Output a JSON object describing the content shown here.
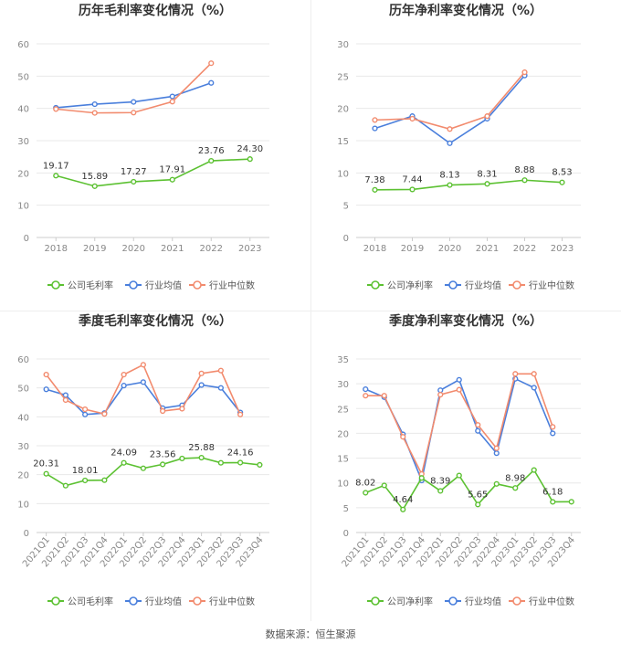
{
  "colors": {
    "company": "#5cc132",
    "industry_avg": "#4a7fdc",
    "industry_median": "#f28b6e",
    "grid": "#e8e8e8",
    "axis_text": "#888888",
    "title": "#333333"
  },
  "source_text": "数据来源：恒生聚源",
  "chart_data": [
    {
      "type": "line",
      "title": "历年毛利率变化情况（%）",
      "categories": [
        "2018",
        "2019",
        "2020",
        "2021",
        "2022",
        "2023"
      ],
      "ylim": [
        0,
        60
      ],
      "yticks": [
        0,
        10,
        20,
        30,
        40,
        50,
        60
      ],
      "grid": true,
      "legend": "bottom",
      "series": [
        {
          "name": "公司毛利率",
          "key": "company",
          "values": [
            19.17,
            15.89,
            17.27,
            17.91,
            23.76,
            24.3
          ],
          "labels": [
            "19.17",
            "15.89",
            "17.27",
            "17.91",
            "23.76",
            "24.30"
          ]
        },
        {
          "name": "行业均值",
          "key": "industry_avg",
          "values": [
            40.2,
            41.3,
            42.0,
            43.7,
            47.9,
            null
          ]
        },
        {
          "name": "行业中位数",
          "key": "industry_median",
          "values": [
            39.8,
            38.6,
            38.7,
            42.1,
            54.0,
            null
          ]
        }
      ]
    },
    {
      "type": "line",
      "title": "历年净利率变化情况（%）",
      "categories": [
        "2018",
        "2019",
        "2020",
        "2021",
        "2022",
        "2023"
      ],
      "ylim": [
        0,
        30
      ],
      "yticks": [
        0,
        5,
        10,
        15,
        20,
        25,
        30
      ],
      "grid": true,
      "legend": "bottom",
      "series": [
        {
          "name": "公司净利率",
          "key": "company",
          "values": [
            7.38,
            7.44,
            8.13,
            8.31,
            8.88,
            8.53
          ],
          "labels": [
            "7.38",
            "7.44",
            "8.13",
            "8.31",
            "8.88",
            "8.53"
          ]
        },
        {
          "name": "行业均值",
          "key": "industry_avg",
          "values": [
            16.9,
            18.8,
            14.6,
            18.4,
            25.1,
            null
          ]
        },
        {
          "name": "行业中位数",
          "key": "industry_median",
          "values": [
            18.2,
            18.4,
            16.8,
            18.8,
            25.6,
            null
          ]
        }
      ]
    },
    {
      "type": "line",
      "title": "季度毛利率变化情况（%）",
      "categories": [
        "2021Q1",
        "2021Q2",
        "2021Q3",
        "2021Q4",
        "2022Q1",
        "2022Q2",
        "2022Q3",
        "2022Q4",
        "2023Q1",
        "2023Q2",
        "2023Q3",
        "2023Q4"
      ],
      "ylim": [
        0,
        60
      ],
      "yticks": [
        0,
        10,
        20,
        30,
        40,
        50,
        60
      ],
      "grid": true,
      "legend": "bottom",
      "series": [
        {
          "name": "公司毛利率",
          "key": "company",
          "values": [
            20.31,
            16.2,
            18.01,
            18.1,
            24.09,
            22.2,
            23.56,
            25.6,
            25.88,
            24.1,
            24.16,
            23.4
          ],
          "labels": [
            "20.31",
            null,
            "18.01",
            null,
            "24.09",
            null,
            "23.56",
            null,
            "25.88",
            null,
            "24.16",
            null
          ]
        },
        {
          "name": "行业均值",
          "key": "industry_avg",
          "values": [
            49.5,
            47.5,
            40.8,
            41.3,
            50.8,
            52.0,
            43.0,
            44.0,
            51.0,
            50.0,
            41.5,
            null
          ]
        },
        {
          "name": "行业中位数",
          "key": "industry_median",
          "values": [
            54.6,
            45.8,
            42.6,
            41.0,
            54.6,
            58.0,
            42.0,
            42.8,
            55.0,
            56.0,
            40.8,
            null
          ]
        }
      ]
    },
    {
      "type": "line",
      "title": "季度净利率变化情况（%）",
      "categories": [
        "2021Q1",
        "2021Q2",
        "2021Q3",
        "2021Q4",
        "2022Q1",
        "2022Q2",
        "2022Q3",
        "2022Q4",
        "2023Q1",
        "2023Q2",
        "2023Q3",
        "2023Q4"
      ],
      "ylim": [
        0,
        35
      ],
      "yticks": [
        0,
        5,
        10,
        15,
        20,
        25,
        30,
        35
      ],
      "grid": true,
      "legend": "bottom",
      "series": [
        {
          "name": "公司净利率",
          "key": "company",
          "values": [
            8.02,
            9.5,
            4.64,
            11.0,
            8.39,
            11.5,
            5.65,
            9.8,
            8.98,
            12.6,
            6.18,
            6.2
          ],
          "labels": [
            "8.02",
            null,
            "4.64",
            null,
            "8.39",
            null,
            "5.65",
            null,
            "8.98",
            null,
            "6.18",
            null
          ]
        },
        {
          "name": "行业均值",
          "key": "industry_avg",
          "values": [
            28.9,
            27.3,
            19.8,
            10.5,
            28.7,
            30.8,
            20.5,
            16.0,
            31.0,
            29.2,
            20.0,
            null
          ]
        },
        {
          "name": "行业中位数",
          "key": "industry_median",
          "values": [
            27.6,
            27.6,
            19.3,
            11.8,
            27.8,
            28.8,
            21.7,
            17.0,
            32.0,
            32.0,
            21.3,
            null
          ]
        }
      ]
    }
  ]
}
